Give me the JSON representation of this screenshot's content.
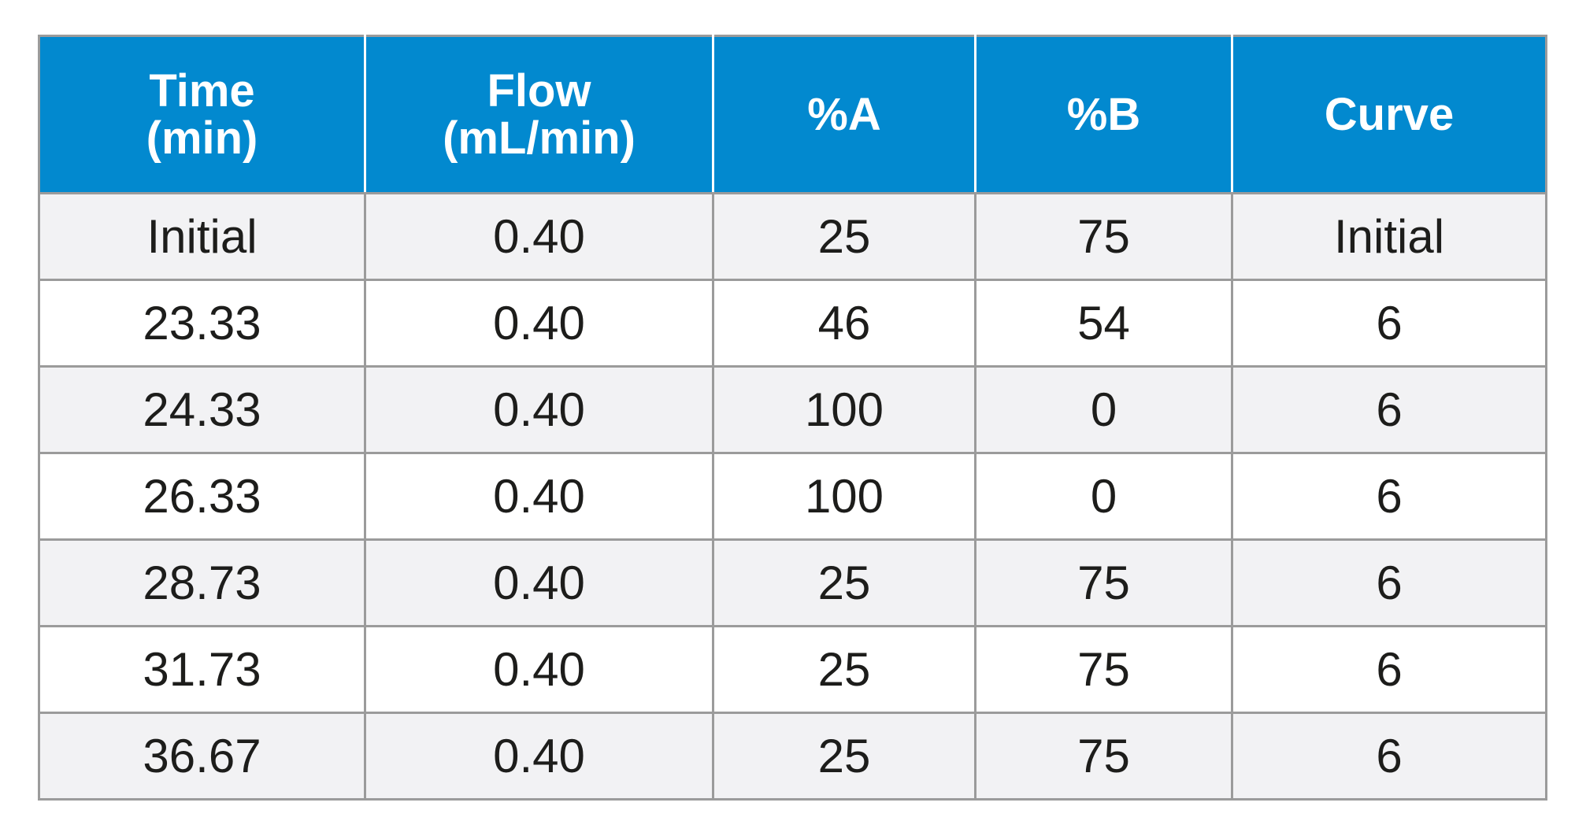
{
  "table": {
    "headers": [
      {
        "line1": "Time",
        "line2": "(min)"
      },
      {
        "line1": "Flow",
        "line2": "(mL/min)"
      },
      {
        "line1": "%A",
        "line2": ""
      },
      {
        "line1": "%B",
        "line2": ""
      },
      {
        "line1": "Curve",
        "line2": ""
      }
    ],
    "rows": [
      [
        "Initial",
        "0.40",
        "25",
        "75",
        "Initial"
      ],
      [
        "23.33",
        "0.40",
        "46",
        "54",
        "6"
      ],
      [
        "24.33",
        "0.40",
        "100",
        "0",
        "6"
      ],
      [
        "26.33",
        "0.40",
        "100",
        "0",
        "6"
      ],
      [
        "28.73",
        "0.40",
        "25",
        "75",
        "6"
      ],
      [
        "31.73",
        "0.40",
        "25",
        "75",
        "6"
      ],
      [
        "36.67",
        "0.40",
        "25",
        "75",
        "6"
      ]
    ]
  },
  "colors": {
    "header_background": "#0289cf",
    "header_text": "#ffffff",
    "row_shaded": "#f2f2f4",
    "row_plain": "#ffffff",
    "grid_lines": "#9b9b9b"
  }
}
